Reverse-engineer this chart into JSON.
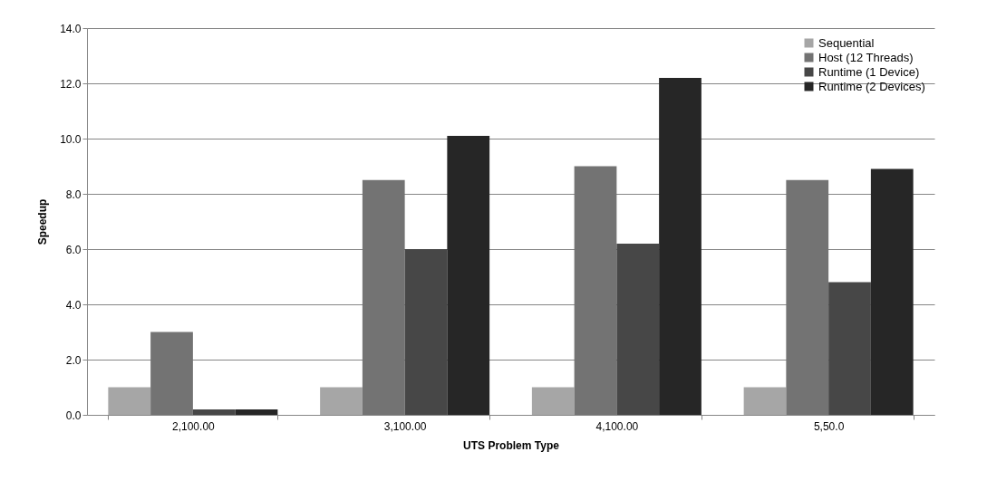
{
  "chart_data": {
    "type": "bar",
    "xlabel": "UTS Problem Type",
    "ylabel": "Speedup",
    "categories": [
      "2,100.00",
      "3,100.00",
      "4,100.00",
      "5,50.0"
    ],
    "series": [
      {
        "name": "Sequential",
        "color": "#a6a6a6",
        "values": [
          1.0,
          1.0,
          1.0,
          1.0
        ]
      },
      {
        "name": "Host (12 Threads)",
        "color": "#737373",
        "values": [
          3.0,
          8.5,
          9.0,
          8.5
        ]
      },
      {
        "name": "Runtime (1 Device)",
        "color": "#474747",
        "values": [
          0.2,
          6.0,
          6.2,
          4.8
        ]
      },
      {
        "name": "Runtime (2 Devices)",
        "color": "#262626",
        "values": [
          0.2,
          10.1,
          12.2,
          8.9
        ]
      }
    ],
    "ylim": [
      0,
      14
    ],
    "yticks": [
      {
        "value": 0,
        "label": "0.0"
      },
      {
        "value": 2,
        "label": "2.0"
      },
      {
        "value": 4,
        "label": "4.0"
      },
      {
        "value": 6,
        "label": "6.0"
      },
      {
        "value": 8,
        "label": "8.0"
      },
      {
        "value": 10,
        "label": "10.0"
      },
      {
        "value": 12,
        "label": "12.0"
      },
      {
        "value": 14,
        "label": "14.0"
      }
    ],
    "grid": "y",
    "legend": "top right"
  }
}
